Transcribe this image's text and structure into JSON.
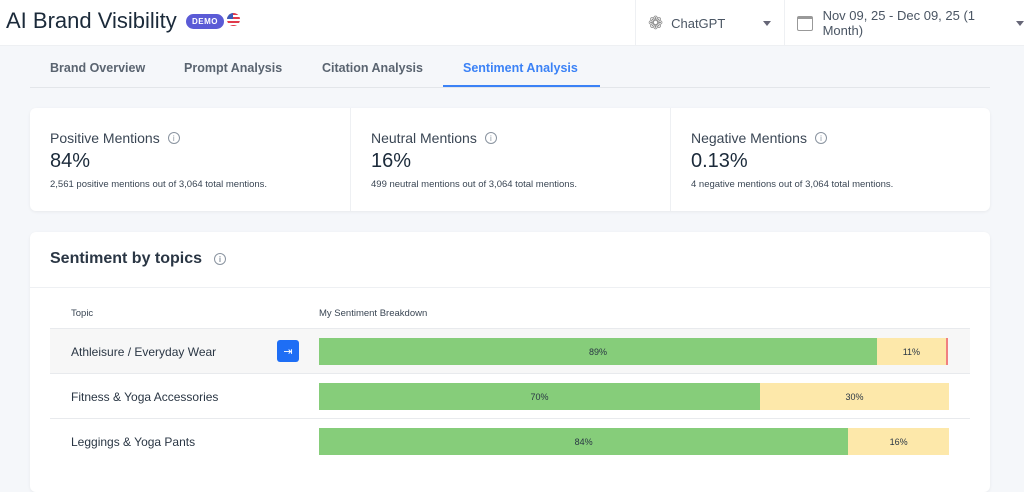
{
  "header": {
    "title": "AI Brand Visibility",
    "badge": "DEMO",
    "model": "ChatGPT",
    "date_range": "Nov 09, 25 - Dec 09, 25 (1 Month)"
  },
  "tabs": [
    {
      "label": "Brand Overview"
    },
    {
      "label": "Prompt Analysis"
    },
    {
      "label": "Citation Analysis"
    },
    {
      "label": "Sentiment Analysis",
      "active": true
    }
  ],
  "metrics": [
    {
      "label": "Positive Mentions",
      "value": "84%",
      "sub": "2,561 positive mentions out of 3,064 total mentions."
    },
    {
      "label": "Neutral Mentions",
      "value": "16%",
      "sub": "499 neutral mentions out of 3,064 total mentions."
    },
    {
      "label": "Negative Mentions",
      "value": "0.13%",
      "sub": "4 negative mentions out of 3,064 total mentions."
    }
  ],
  "section": {
    "title": "Sentiment by topics",
    "col_topic": "Topic",
    "col_breakdown": "My Sentiment Breakdown"
  },
  "colors": {
    "positive": "#86cd7a",
    "neutral": "#fde8aa",
    "negative": "#f08080",
    "accent": "#3b82f6"
  },
  "rows": [
    {
      "topic": "Athleisure / Everyday Wear",
      "positive": 89,
      "neutral": 11,
      "negative": 0.5,
      "positive_label": "89%",
      "neutral_label": "11%"
    },
    {
      "topic": "Fitness & Yoga Accessories",
      "positive": 70,
      "neutral": 30,
      "negative": 0,
      "positive_label": "70%",
      "neutral_label": "30%"
    },
    {
      "topic": "Leggings & Yoga Pants",
      "positive": 84,
      "neutral": 16,
      "negative": 0,
      "positive_label": "84%",
      "neutral_label": "16%"
    }
  ]
}
